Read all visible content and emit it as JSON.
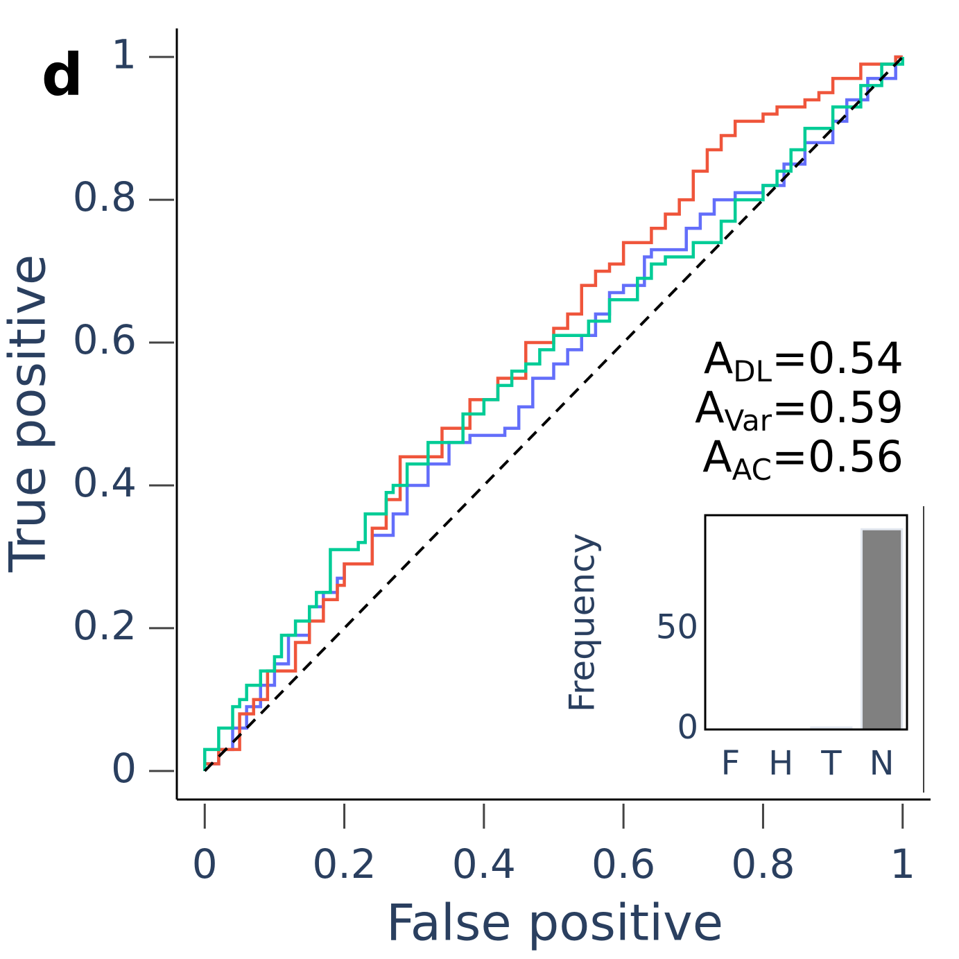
{
  "chart_data": [
    {
      "type": "line",
      "panel_label": "d",
      "x_label": "False positive",
      "y_label": "True positive",
      "xlim": [
        -0.04,
        1.04
      ],
      "ylim": [
        -0.04,
        1.04
      ],
      "xticks": [
        0,
        0.2,
        0.4,
        0.6,
        0.8,
        1
      ],
      "yticks": [
        0,
        0.2,
        0.4,
        0.6,
        0.8,
        1
      ],
      "step": true,
      "annotations": [
        {
          "main": "A",
          "sub": "DL",
          "rest": "=0.54"
        },
        {
          "main": "A",
          "sub": "Var",
          "rest": "=0.59"
        },
        {
          "main": "A",
          "sub": "AC",
          "rest": "=0.56"
        }
      ],
      "diagonal": {
        "x": [
          0,
          1
        ],
        "values": [
          0,
          1
        ],
        "color": "#000000",
        "dash": true
      },
      "series": [
        {
          "color": "#636efa",
          "x": [
            0,
            0,
            0.02,
            0.02,
            0.04,
            0.04,
            0.06,
            0.06,
            0.08,
            0.08,
            0.1,
            0.1,
            0.12,
            0.12,
            0.15,
            0.15,
            0.17,
            0.17,
            0.19,
            0.19,
            0.2,
            0.2,
            0.24,
            0.24,
            0.27,
            0.27,
            0.29,
            0.29,
            0.32,
            0.32,
            0.35,
            0.35,
            0.38,
            0.38,
            0.43,
            0.43,
            0.45,
            0.45,
            0.47,
            0.47,
            0.5,
            0.5,
            0.52,
            0.52,
            0.54,
            0.54,
            0.56,
            0.56,
            0.58,
            0.58,
            0.6,
            0.6,
            0.63,
            0.63,
            0.64,
            0.64,
            0.69,
            0.69,
            0.71,
            0.71,
            0.73,
            0.73,
            0.76,
            0.76,
            0.8,
            0.8,
            0.83,
            0.83,
            0.86,
            0.86,
            0.9,
            0.9,
            0.92,
            0.92,
            0.95,
            0.95,
            0.99,
            0.99,
            1
          ],
          "values": [
            0,
            0.01,
            0.01,
            0.03,
            0.03,
            0.06,
            0.06,
            0.09,
            0.09,
            0.12,
            0.12,
            0.15,
            0.15,
            0.19,
            0.19,
            0.23,
            0.23,
            0.25,
            0.25,
            0.27,
            0.27,
            0.29,
            0.29,
            0.33,
            0.33,
            0.36,
            0.36,
            0.4,
            0.4,
            0.43,
            0.43,
            0.46,
            0.46,
            0.47,
            0.47,
            0.48,
            0.48,
            0.51,
            0.51,
            0.55,
            0.55,
            0.57,
            0.57,
            0.59,
            0.59,
            0.61,
            0.61,
            0.64,
            0.64,
            0.67,
            0.67,
            0.68,
            0.68,
            0.72,
            0.72,
            0.73,
            0.73,
            0.76,
            0.76,
            0.78,
            0.78,
            0.8,
            0.8,
            0.81,
            0.81,
            0.82,
            0.82,
            0.85,
            0.85,
            0.88,
            0.88,
            0.91,
            0.91,
            0.94,
            0.94,
            0.97,
            0.97,
            1,
            1
          ]
        },
        {
          "color": "#ef553b",
          "x": [
            0,
            0,
            0.02,
            0.02,
            0.05,
            0.05,
            0.07,
            0.07,
            0.09,
            0.09,
            0.13,
            0.13,
            0.15,
            0.15,
            0.17,
            0.17,
            0.19,
            0.19,
            0.2,
            0.2,
            0.24,
            0.24,
            0.26,
            0.26,
            0.28,
            0.28,
            0.34,
            0.34,
            0.38,
            0.38,
            0.42,
            0.42,
            0.46,
            0.46,
            0.5,
            0.5,
            0.52,
            0.52,
            0.54,
            0.54,
            0.56,
            0.56,
            0.58,
            0.58,
            0.6,
            0.6,
            0.64,
            0.64,
            0.66,
            0.66,
            0.68,
            0.68,
            0.7,
            0.7,
            0.72,
            0.72,
            0.74,
            0.74,
            0.76,
            0.76,
            0.8,
            0.8,
            0.82,
            0.82,
            0.86,
            0.86,
            0.88,
            0.88,
            0.9,
            0.9,
            0.94,
            0.94,
            0.99,
            0.99,
            1
          ],
          "values": [
            0,
            0.01,
            0.01,
            0.03,
            0.03,
            0.08,
            0.08,
            0.1,
            0.1,
            0.14,
            0.14,
            0.18,
            0.18,
            0.21,
            0.21,
            0.24,
            0.24,
            0.26,
            0.26,
            0.29,
            0.29,
            0.34,
            0.34,
            0.38,
            0.38,
            0.44,
            0.44,
            0.48,
            0.48,
            0.52,
            0.52,
            0.55,
            0.55,
            0.6,
            0.6,
            0.62,
            0.62,
            0.64,
            0.64,
            0.68,
            0.68,
            0.7,
            0.7,
            0.71,
            0.71,
            0.74,
            0.74,
            0.76,
            0.76,
            0.78,
            0.78,
            0.8,
            0.8,
            0.84,
            0.84,
            0.87,
            0.87,
            0.89,
            0.89,
            0.91,
            0.91,
            0.92,
            0.92,
            0.93,
            0.93,
            0.94,
            0.94,
            0.95,
            0.95,
            0.97,
            0.97,
            0.99,
            0.99,
            1,
            1
          ]
        },
        {
          "color": "#00cc96",
          "x": [
            0,
            0,
            0.02,
            0.02,
            0.04,
            0.04,
            0.05,
            0.05,
            0.06,
            0.06,
            0.08,
            0.08,
            0.1,
            0.1,
            0.11,
            0.11,
            0.13,
            0.13,
            0.15,
            0.15,
            0.16,
            0.16,
            0.18,
            0.18,
            0.22,
            0.22,
            0.23,
            0.23,
            0.26,
            0.26,
            0.27,
            0.27,
            0.29,
            0.29,
            0.32,
            0.32,
            0.37,
            0.37,
            0.4,
            0.4,
            0.42,
            0.42,
            0.44,
            0.44,
            0.46,
            0.46,
            0.48,
            0.48,
            0.5,
            0.5,
            0.55,
            0.55,
            0.58,
            0.58,
            0.62,
            0.62,
            0.64,
            0.64,
            0.66,
            0.66,
            0.7,
            0.7,
            0.74,
            0.74,
            0.76,
            0.76,
            0.8,
            0.8,
            0.82,
            0.82,
            0.84,
            0.84,
            0.86,
            0.86,
            0.9,
            0.9,
            0.94,
            0.94,
            0.97,
            0.97,
            1,
            1
          ],
          "values": [
            0,
            0.03,
            0.03,
            0.06,
            0.06,
            0.09,
            0.09,
            0.1,
            0.1,
            0.12,
            0.12,
            0.14,
            0.14,
            0.16,
            0.16,
            0.19,
            0.19,
            0.21,
            0.21,
            0.23,
            0.23,
            0.25,
            0.25,
            0.31,
            0.31,
            0.32,
            0.32,
            0.36,
            0.36,
            0.39,
            0.39,
            0.4,
            0.4,
            0.43,
            0.43,
            0.46,
            0.46,
            0.5,
            0.5,
            0.52,
            0.52,
            0.54,
            0.54,
            0.56,
            0.56,
            0.57,
            0.57,
            0.59,
            0.59,
            0.61,
            0.61,
            0.63,
            0.63,
            0.66,
            0.66,
            0.69,
            0.69,
            0.71,
            0.71,
            0.72,
            0.72,
            0.74,
            0.74,
            0.77,
            0.77,
            0.8,
            0.8,
            0.82,
            0.82,
            0.84,
            0.84,
            0.87,
            0.87,
            0.9,
            0.9,
            0.93,
            0.93,
            0.96,
            0.96,
            0.99,
            0.99,
            1
          ]
        }
      ]
    },
    {
      "type": "bar",
      "y_label": "Frequency",
      "categories": [
        "F",
        "H",
        "T",
        "N"
      ],
      "values": [
        0,
        0,
        1,
        100
      ],
      "color": "#808080",
      "edge_color": "#e3e8f0",
      "ylim": [
        0,
        107
      ],
      "yticks": [
        0,
        50
      ]
    }
  ]
}
